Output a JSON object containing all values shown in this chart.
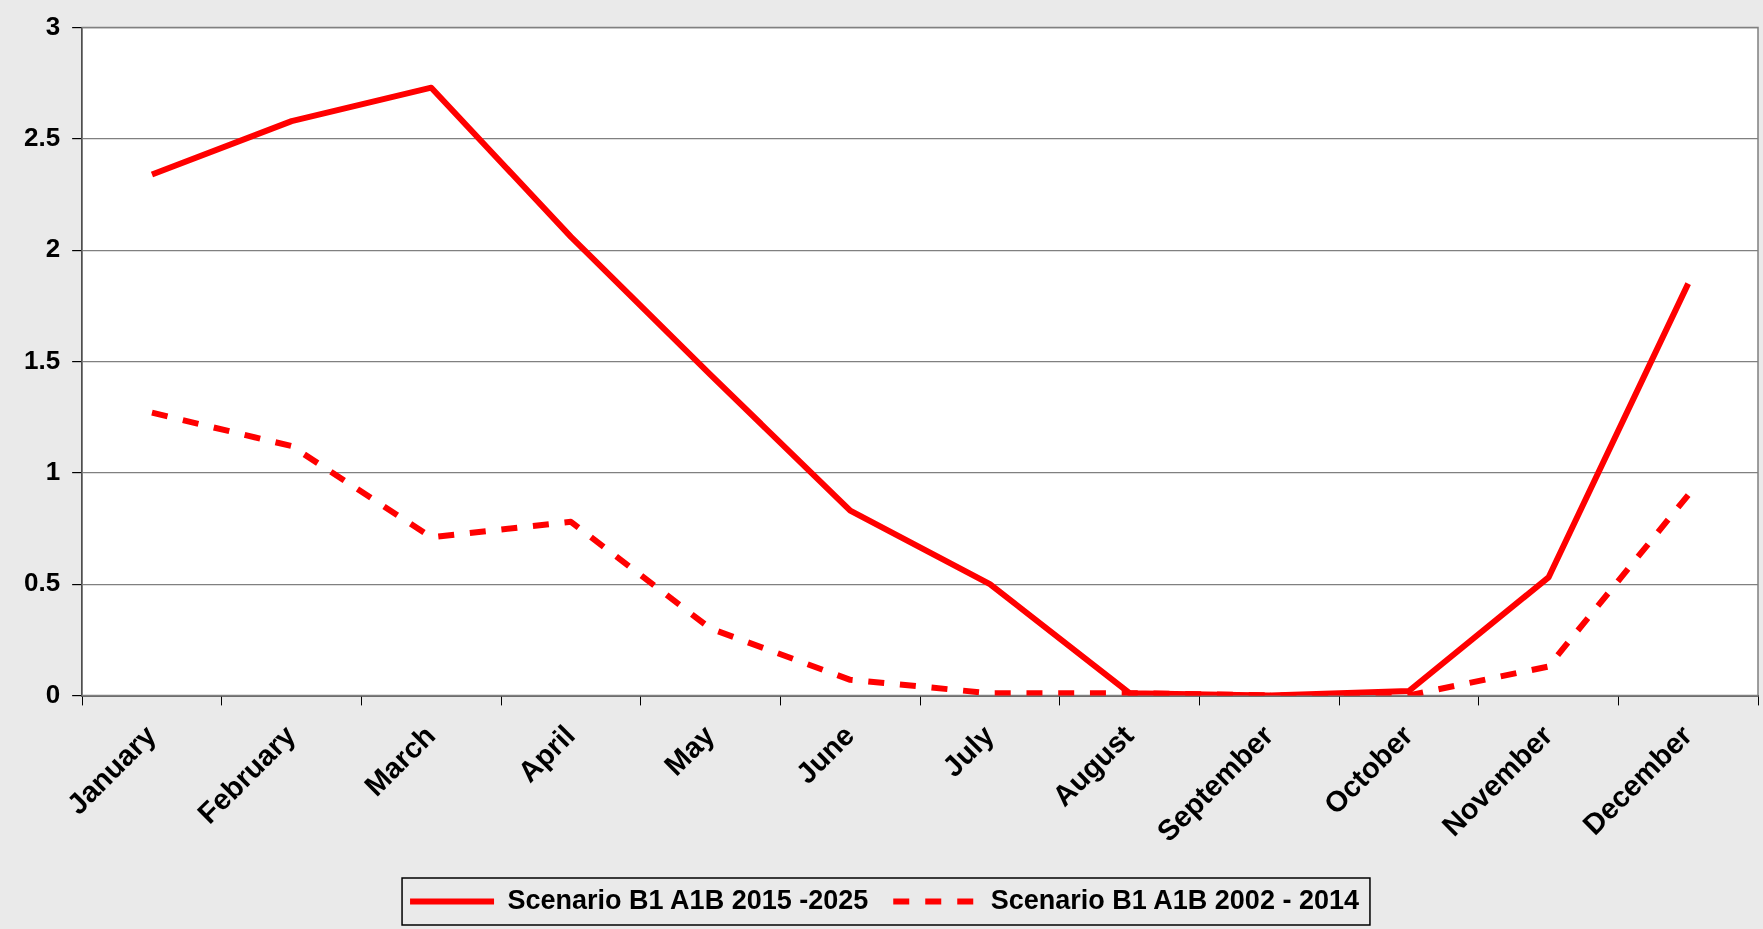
{
  "chart_data": {
    "type": "line",
    "categories": [
      "January",
      "February",
      "March",
      "April",
      "May",
      "June",
      "July",
      "August",
      "September",
      "October",
      "November",
      "December"
    ],
    "series": [
      {
        "name": "Scenario B1 A1B 2015 -2025",
        "color": "#ff0000",
        "line_style": "solid",
        "values": [
          2.34,
          2.58,
          2.73,
          2.06,
          1.44,
          0.83,
          0.5,
          0.01,
          0.0,
          0.02,
          0.53,
          1.85
        ]
      },
      {
        "name": "Scenario B1 A1B 2002 - 2014",
        "color": "#ff0000",
        "line_style": "dashed",
        "values": [
          1.27,
          1.12,
          0.71,
          0.78,
          0.3,
          0.07,
          0.01,
          0.01,
          0.0,
          0.0,
          0.13,
          0.9
        ]
      }
    ],
    "ylim": [
      0,
      3
    ],
    "yticks": [
      0,
      0.5,
      1,
      1.5,
      2,
      2.5,
      3
    ],
    "grid": "y",
    "legend": "bottom",
    "marker": "none"
  }
}
